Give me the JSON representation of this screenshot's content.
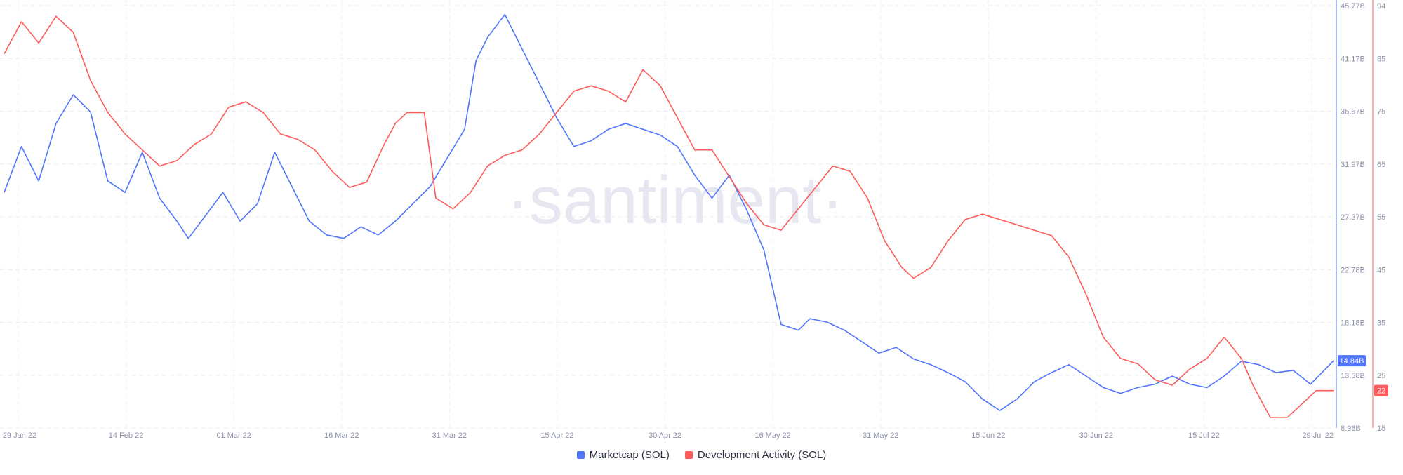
{
  "chart_data": {
    "type": "line",
    "watermark": "·santiment·",
    "x_ticks": [
      "29 Jan 22",
      "14 Feb 22",
      "01 Mar 22",
      "16 Mar 22",
      "31 Mar 22",
      "15 Apr 22",
      "30 Apr 22",
      "16 May 22",
      "31 May 22",
      "15 Jun 22",
      "30 Jun 22",
      "15 Jul 22",
      "29 Jul 22"
    ],
    "left_axis": {
      "ticks": [
        "45.77B",
        "41.17B",
        "36.57B",
        "31.97B",
        "27.37B",
        "22.78B",
        "18.18B",
        "13.58B",
        "8.98B"
      ],
      "min": 8.98,
      "max": 45.77,
      "color": "#5275ff"
    },
    "right_axis": {
      "ticks": [
        "94",
        "85",
        "75",
        "65",
        "55",
        "45",
        "35",
        "25",
        "15"
      ],
      "min": 15,
      "max": 94,
      "color": "#ff5b5b"
    },
    "grid": true,
    "legend_position": "bottom",
    "series": [
      {
        "name": "Marketcap (SOL)",
        "color": "#5275ff",
        "axis": "left",
        "last_value_label": "14.84B",
        "points": [
          [
            0,
            29.5
          ],
          [
            3,
            33.5
          ],
          [
            6,
            30.5
          ],
          [
            9,
            35.5
          ],
          [
            12,
            38.0
          ],
          [
            15,
            36.5
          ],
          [
            18,
            30.5
          ],
          [
            21,
            29.5
          ],
          [
            24,
            33.0
          ],
          [
            27,
            29.0
          ],
          [
            30,
            27.0
          ],
          [
            32,
            25.5
          ],
          [
            35,
            27.5
          ],
          [
            38,
            29.5
          ],
          [
            41,
            27.0
          ],
          [
            44,
            28.5
          ],
          [
            47,
            33.0
          ],
          [
            50,
            30.0
          ],
          [
            53,
            27.0
          ],
          [
            56,
            25.8
          ],
          [
            59,
            25.5
          ],
          [
            62,
            26.5
          ],
          [
            65,
            25.8
          ],
          [
            68,
            27.0
          ],
          [
            71,
            28.5
          ],
          [
            74,
            30.0
          ],
          [
            77,
            32.5
          ],
          [
            80,
            35.0
          ],
          [
            82,
            41.0
          ],
          [
            84,
            43.0
          ],
          [
            87,
            45.0
          ],
          [
            90,
            42.0
          ],
          [
            93,
            39.0
          ],
          [
            96,
            36.0
          ],
          [
            99,
            33.5
          ],
          [
            102,
            34.0
          ],
          [
            105,
            35.0
          ],
          [
            108,
            35.5
          ],
          [
            111,
            35.0
          ],
          [
            114,
            34.5
          ],
          [
            117,
            33.5
          ],
          [
            120,
            31.0
          ],
          [
            123,
            29.0
          ],
          [
            126,
            31.0
          ],
          [
            129,
            28.0
          ],
          [
            132,
            24.5
          ],
          [
            135,
            18.0
          ],
          [
            138,
            17.5
          ],
          [
            140,
            18.5
          ],
          [
            143,
            18.2
          ],
          [
            146,
            17.5
          ],
          [
            149,
            16.5
          ],
          [
            152,
            15.5
          ],
          [
            155,
            16.0
          ],
          [
            158,
            15.0
          ],
          [
            161,
            14.5
          ],
          [
            164,
            13.8
          ],
          [
            167,
            13.0
          ],
          [
            170,
            11.5
          ],
          [
            173,
            10.5
          ],
          [
            176,
            11.5
          ],
          [
            179,
            13.0
          ],
          [
            182,
            13.8
          ],
          [
            185,
            14.5
          ],
          [
            188,
            13.5
          ],
          [
            191,
            12.5
          ],
          [
            194,
            12.0
          ],
          [
            197,
            12.5
          ],
          [
            200,
            12.8
          ],
          [
            203,
            13.5
          ],
          [
            206,
            12.8
          ],
          [
            209,
            12.5
          ],
          [
            212,
            13.5
          ],
          [
            215,
            14.8
          ],
          [
            218,
            14.5
          ],
          [
            221,
            13.8
          ],
          [
            224,
            14.0
          ],
          [
            227,
            12.8
          ],
          [
            229,
            13.8
          ],
          [
            231,
            14.84
          ]
        ]
      },
      {
        "name": "Development Activity (SOL)",
        "color": "#ff5b5b",
        "axis": "right",
        "last_value_label": "22",
        "points": [
          [
            0,
            85
          ],
          [
            3,
            91
          ],
          [
            6,
            87
          ],
          [
            9,
            92
          ],
          [
            12,
            89
          ],
          [
            15,
            80
          ],
          [
            18,
            74
          ],
          [
            21,
            70
          ],
          [
            24,
            67
          ],
          [
            27,
            64
          ],
          [
            30,
            65
          ],
          [
            33,
            68
          ],
          [
            36,
            70
          ],
          [
            39,
            75
          ],
          [
            42,
            76
          ],
          [
            45,
            74
          ],
          [
            48,
            70
          ],
          [
            51,
            69
          ],
          [
            54,
            67
          ],
          [
            57,
            63
          ],
          [
            60,
            60
          ],
          [
            63,
            61
          ],
          [
            66,
            68
          ],
          [
            68,
            72
          ],
          [
            70,
            74
          ],
          [
            73,
            74
          ],
          [
            75,
            58
          ],
          [
            78,
            56
          ],
          [
            81,
            59
          ],
          [
            84,
            64
          ],
          [
            87,
            66
          ],
          [
            90,
            67
          ],
          [
            93,
            70
          ],
          [
            96,
            74
          ],
          [
            99,
            78
          ],
          [
            102,
            79
          ],
          [
            105,
            78
          ],
          [
            108,
            76
          ],
          [
            111,
            82
          ],
          [
            114,
            79
          ],
          [
            117,
            73
          ],
          [
            120,
            67
          ],
          [
            123,
            67
          ],
          [
            126,
            62
          ],
          [
            129,
            57
          ],
          [
            132,
            53
          ],
          [
            135,
            52
          ],
          [
            138,
            56
          ],
          [
            141,
            60
          ],
          [
            144,
            64
          ],
          [
            147,
            63
          ],
          [
            150,
            58
          ],
          [
            153,
            50
          ],
          [
            156,
            45
          ],
          [
            158,
            43
          ],
          [
            161,
            45
          ],
          [
            164,
            50
          ],
          [
            167,
            54
          ],
          [
            170,
            55
          ],
          [
            173,
            54
          ],
          [
            176,
            53
          ],
          [
            179,
            52
          ],
          [
            182,
            51
          ],
          [
            185,
            47
          ],
          [
            188,
            40
          ],
          [
            191,
            32
          ],
          [
            194,
            28
          ],
          [
            197,
            27
          ],
          [
            200,
            24
          ],
          [
            203,
            23
          ],
          [
            206,
            26
          ],
          [
            209,
            28
          ],
          [
            212,
            32
          ],
          [
            215,
            28
          ],
          [
            217,
            23
          ],
          [
            220,
            17
          ],
          [
            223,
            17
          ],
          [
            226,
            20
          ],
          [
            228,
            22
          ],
          [
            231,
            22
          ]
        ]
      }
    ]
  }
}
